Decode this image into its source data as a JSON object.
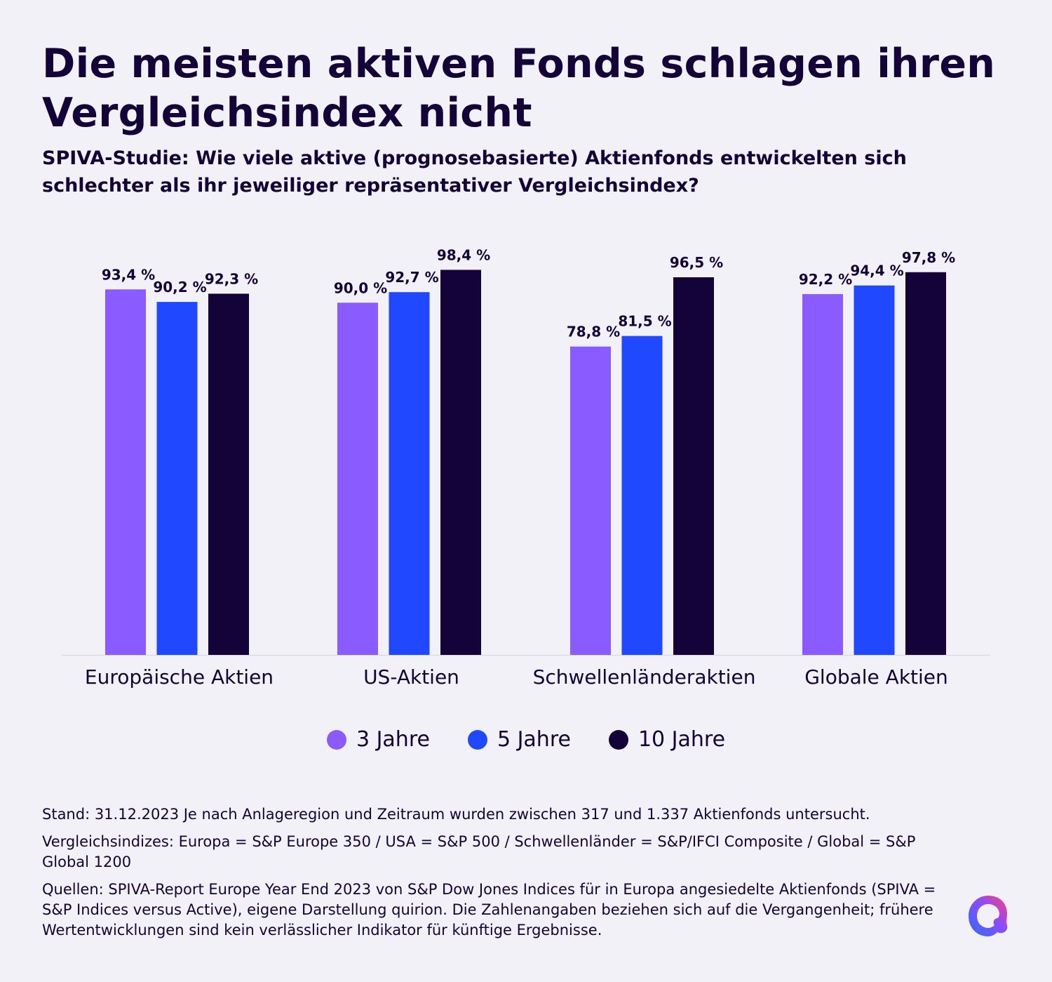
{
  "header": {
    "title": "Die meisten aktiven Fonds schlagen ihren Vergleichsindex nicht",
    "subtitle": "SPIVA-Studie: Wie viele aktive (prognosebasierte) Aktienfonds entwickelten sich schlechter als ihr jeweiliger repräsentativer Vergleichsindex?"
  },
  "chart_data": {
    "type": "bar",
    "title": "Die meisten aktiven Fonds schlagen ihren Vergleichsindex nicht",
    "subtitle": "SPIVA-Studie: Wie viele aktive (prognosebasierte) Aktienfonds entwickelten sich schlechter als ihr jeweiliger repräsentativer Vergleichsindex?",
    "xlabel": "",
    "ylabel": "",
    "ylim": [
      0,
      100
    ],
    "grid": false,
    "legend_position": "bottom-center",
    "categories": [
      "Europäische Aktien",
      "US-Aktien",
      "Schwellenländeraktien",
      "Globale Aktien"
    ],
    "series": [
      {
        "name": "3 Jahre",
        "color": "#8a5cff",
        "values": [
          93.4,
          90.0,
          78.8,
          92.2
        ],
        "labels": [
          "93,4 %",
          "90,0 %",
          "78,8 %",
          "92,2 %"
        ]
      },
      {
        "name": "5 Jahre",
        "color": "#1f48ff",
        "values": [
          90.2,
          92.7,
          81.5,
          94.4
        ],
        "labels": [
          "90,2 %",
          "92,7 %",
          "81,5 %",
          "94,4 %"
        ]
      },
      {
        "name": "10 Jahre",
        "color": "#130339",
        "values": [
          92.3,
          98.4,
          96.5,
          97.8
        ],
        "labels": [
          "92,3 %",
          "98,4 %",
          "96,5 %",
          "97,8 %"
        ]
      }
    ]
  },
  "notes": [
    "Stand: 31.12.2023 Je nach Anlageregion und Zeitraum wurden zwischen 317 und 1.337 Aktienfonds untersucht.",
    "Vergleichsindizes: Europa = S&P Europe 350 / USA = S&P 500 / Schwellenländer = S&P/IFCI Composite / Global = S&P Global 1200",
    "Quellen: SPIVA-Report Europe Year End 2023 von S&P Dow Jones Indices für in Europa angesiedelte Aktienfonds (SPIVA = S&P Indices versus Active), eigene Darstellung quirion. Die Zahlenangaben beziehen sich auf die Vergangenheit; frühere Wertentwicklungen sind kein verlässlicher Indikator für künftige Ergebnisse."
  ],
  "logo": {
    "name": "quirion-logo"
  }
}
